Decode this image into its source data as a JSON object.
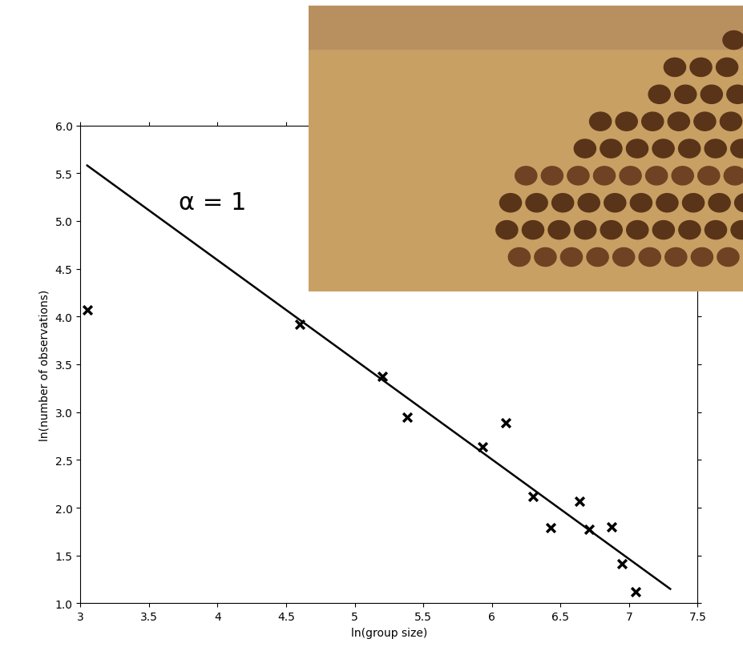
{
  "chart_data": {
    "type": "scatter",
    "x_label": "ln(group size)",
    "y_label": "ln(number of observations)",
    "annotations": [
      {
        "text": "α = 1",
        "x": 3.72,
        "y": 5.2
      }
    ],
    "series": [
      {
        "type": "scatter",
        "marker": "x",
        "color": "#000000",
        "x": [
          3.05,
          4.6,
          5.2,
          5.38,
          5.93,
          6.1,
          6.3,
          6.43,
          6.64,
          6.71,
          6.87,
          6.95,
          7.05
        ],
        "values": [
          4.07,
          3.92,
          3.37,
          2.95,
          2.64,
          2.89,
          2.12,
          1.79,
          2.07,
          1.77,
          1.8,
          1.41,
          1.12
        ]
      },
      {
        "type": "line",
        "line_style": "solid",
        "color": "#000000",
        "x": [
          3.05,
          7.3
        ],
        "values": [
          5.58,
          1.15
        ]
      }
    ],
    "xlim": [
      3,
      7.5
    ],
    "xticks": [
      3,
      3.5,
      4,
      4.5,
      5,
      5.5,
      6,
      6.5,
      7,
      7.5
    ],
    "ylim": [
      1,
      6
    ],
    "yticks": [
      {
        "value": 1,
        "label": "1.0"
      },
      1.5,
      {
        "value": 2,
        "label": "2.0"
      },
      2.5,
      {
        "value": 3,
        "label": "3.0"
      },
      3.5,
      {
        "value": 4,
        "label": "4.0"
      },
      4.5,
      {
        "value": 5,
        "label": "5.0"
      },
      5.5,
      {
        "value": 6,
        "label": "6.0"
      }
    ],
    "grid": false
  }
}
